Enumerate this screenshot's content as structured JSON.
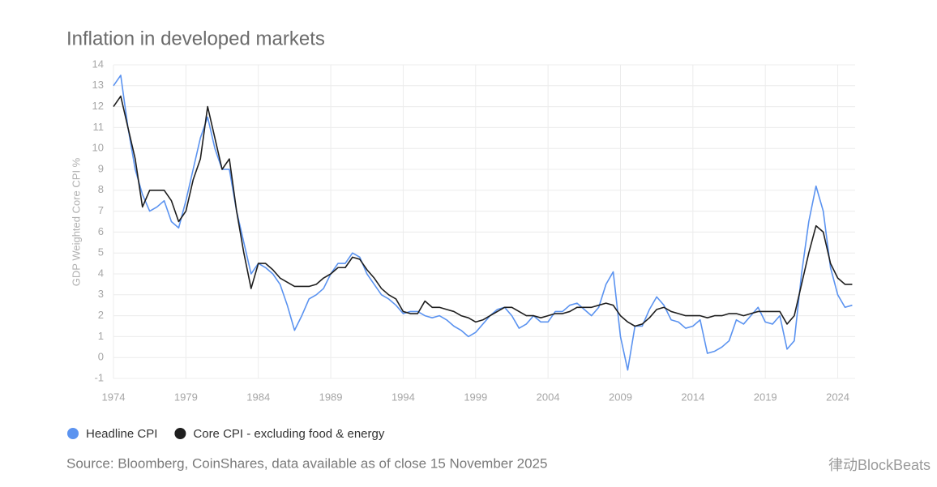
{
  "chart_data": {
    "type": "line",
    "title": "Inflation in developed markets",
    "ylabel": "GDP Weighted Core CPI %",
    "source": "Source: Bloomberg, CoinShares, data available as of close 15 November 2025",
    "watermark": "律动BlockBeats",
    "grid": true,
    "xlim": [
      1974,
      2025.2
    ],
    "ylim": [
      -1,
      14
    ],
    "xticks": [
      1974,
      1979,
      1984,
      1989,
      1994,
      1999,
      2004,
      2009,
      2014,
      2019,
      2024
    ],
    "yticks": [
      -1,
      0,
      1,
      2,
      3,
      4,
      5,
      6,
      7,
      8,
      9,
      10,
      11,
      12,
      13,
      14
    ],
    "x": [
      1974,
      1974.5,
      1975,
      1975.5,
      1976,
      1976.5,
      1977,
      1977.5,
      1978,
      1978.5,
      1979,
      1979.5,
      1980,
      1980.5,
      1981,
      1981.5,
      1982,
      1982.5,
      1983,
      1983.5,
      1984,
      1984.5,
      1985,
      1985.5,
      1986,
      1986.5,
      1987,
      1987.5,
      1988,
      1988.5,
      1989,
      1989.5,
      1990,
      1990.5,
      1991,
      1991.5,
      1992,
      1992.5,
      1993,
      1993.5,
      1994,
      1994.5,
      1995,
      1995.5,
      1996,
      1996.5,
      1997,
      1997.5,
      1998,
      1998.5,
      1999,
      1999.5,
      2000,
      2000.5,
      2001,
      2001.5,
      2002,
      2002.5,
      2003,
      2003.5,
      2004,
      2004.5,
      2005,
      2005.5,
      2006,
      2006.5,
      2007,
      2007.5,
      2008,
      2008.5,
      2009,
      2009.5,
      2010,
      2010.5,
      2011,
      2011.5,
      2012,
      2012.5,
      2013,
      2013.5,
      2014,
      2014.5,
      2015,
      2015.5,
      2016,
      2016.5,
      2017,
      2017.5,
      2018,
      2018.5,
      2019,
      2019.5,
      2020,
      2020.5,
      2021,
      2021.5,
      2022,
      2022.5,
      2023,
      2023.5,
      2024,
      2024.5,
      2025
    ],
    "series": [
      {
        "name": "Headline CPI",
        "color": "#5b93f0",
        "values": [
          13.0,
          13.5,
          11.0,
          9.0,
          7.8,
          7.0,
          7.2,
          7.5,
          6.5,
          6.2,
          7.5,
          9.0,
          10.5,
          11.5,
          10.0,
          9.0,
          9.0,
          7.0,
          5.5,
          4.0,
          4.5,
          4.3,
          4.0,
          3.5,
          2.5,
          1.3,
          2.0,
          2.8,
          3.0,
          3.3,
          4.0,
          4.5,
          4.5,
          5.0,
          4.8,
          4.0,
          3.5,
          3.0,
          2.8,
          2.5,
          2.1,
          2.2,
          2.2,
          2.0,
          1.9,
          2.0,
          1.8,
          1.5,
          1.3,
          1.0,
          1.2,
          1.6,
          2.0,
          2.3,
          2.4,
          2.0,
          1.4,
          1.6,
          2.0,
          1.7,
          1.7,
          2.2,
          2.2,
          2.5,
          2.6,
          2.3,
          2.0,
          2.4,
          3.5,
          4.1,
          1.0,
          -0.6,
          1.5,
          1.5,
          2.3,
          2.9,
          2.5,
          1.8,
          1.7,
          1.4,
          1.5,
          1.8,
          0.2,
          0.3,
          0.5,
          0.8,
          1.8,
          1.6,
          2.0,
          2.4,
          1.7,
          1.6,
          2.0,
          0.4,
          0.8,
          4.0,
          6.5,
          8.2,
          7.0,
          4.3,
          3.0,
          2.4,
          2.5
        ]
      },
      {
        "name": "Core CPI - excluding food & energy",
        "color": "#1e1e1e",
        "values": [
          12.0,
          12.5,
          11.0,
          9.5,
          7.2,
          8.0,
          8.0,
          8.0,
          7.5,
          6.5,
          7.0,
          8.5,
          9.5,
          12.0,
          10.5,
          9.0,
          9.5,
          7.0,
          5.0,
          3.3,
          4.5,
          4.5,
          4.2,
          3.8,
          3.6,
          3.4,
          3.4,
          3.4,
          3.5,
          3.8,
          4.0,
          4.3,
          4.3,
          4.8,
          4.7,
          4.2,
          3.8,
          3.3,
          3.0,
          2.8,
          2.2,
          2.1,
          2.1,
          2.7,
          2.4,
          2.4,
          2.3,
          2.2,
          2.0,
          1.9,
          1.7,
          1.8,
          2.0,
          2.2,
          2.4,
          2.4,
          2.2,
          2.0,
          2.0,
          1.9,
          2.0,
          2.1,
          2.1,
          2.2,
          2.4,
          2.4,
          2.4,
          2.5,
          2.6,
          2.5,
          2.0,
          1.7,
          1.5,
          1.6,
          1.9,
          2.3,
          2.4,
          2.2,
          2.1,
          2.0,
          2.0,
          2.0,
          1.9,
          2.0,
          2.0,
          2.1,
          2.1,
          2.0,
          2.1,
          2.2,
          2.2,
          2.2,
          2.2,
          1.6,
          2.0,
          3.5,
          5.0,
          6.3,
          6.0,
          4.5,
          3.8,
          3.5,
          3.5
        ]
      }
    ]
  }
}
